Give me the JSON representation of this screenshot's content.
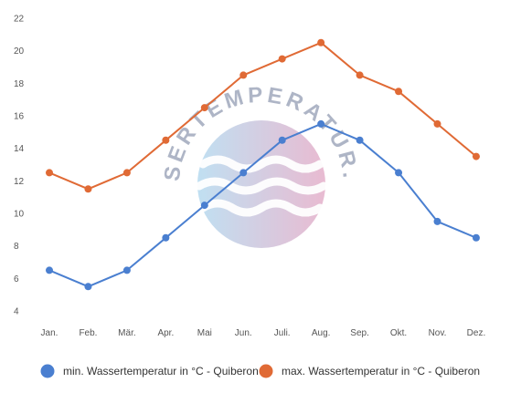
{
  "chart_data": {
    "type": "line",
    "categories": [
      "Jan.",
      "Feb.",
      "Mär.",
      "Apr.",
      "Mai",
      "Jun.",
      "Juli.",
      "Aug.",
      "Sep.",
      "Okt.",
      "Nov.",
      "Dez."
    ],
    "ylim": [
      4,
      22
    ],
    "yticks": [
      4,
      6,
      8,
      10,
      12,
      14,
      16,
      18,
      20,
      22
    ],
    "grid": false,
    "legend_position": "bottom",
    "series": [
      {
        "name": "min. Wassertemperatur in °C - Quiberon",
        "color": "#4a7fd0",
        "values": [
          6.5,
          5.5,
          6.5,
          8.5,
          10.5,
          12.5,
          14.5,
          15.5,
          14.5,
          12.5,
          9.5,
          8.5
        ]
      },
      {
        "name": "max. Wassertemperatur in °C - Quiberon",
        "color": "#e06a35",
        "values": [
          12.5,
          11.5,
          12.5,
          14.5,
          16.5,
          18.5,
          19.5,
          20.5,
          18.5,
          17.5,
          15.5,
          13.5
        ]
      }
    ]
  },
  "watermark": {
    "text": "WASSERTEMPERATUR.ORG",
    "colors": [
      "#b9dcf0",
      "#e6b3cc"
    ]
  }
}
